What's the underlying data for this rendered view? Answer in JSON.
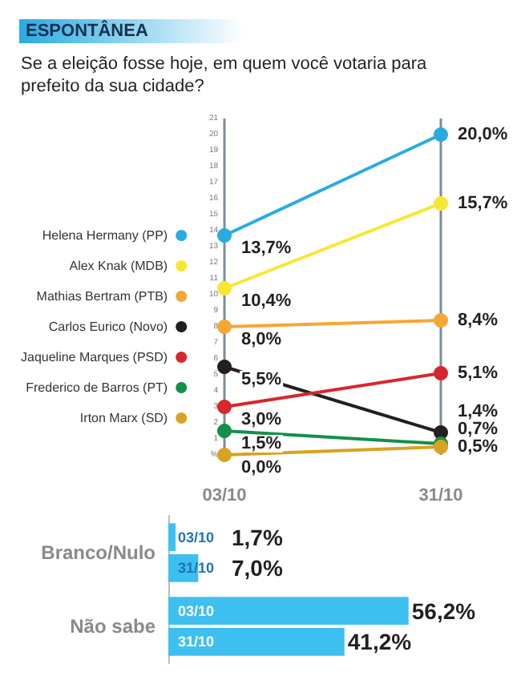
{
  "chart_data": [
    {
      "type": "line",
      "title": "ESPONTÂNEA",
      "subtitle": "Se a eleição fosse hoje, em quem você votaria para prefeito da sua cidade?",
      "categories": [
        "03/10",
        "31/10"
      ],
      "ylim": [
        0,
        21
      ],
      "yticks": [
        {
          "value": 0,
          "label": "%"
        },
        1,
        2,
        3,
        4,
        5,
        6,
        7,
        8,
        9,
        10,
        11,
        12,
        13,
        14,
        15,
        16,
        17,
        18,
        19,
        20,
        21
      ],
      "grid": "x",
      "legend": "left",
      "marker": "circle",
      "series": [
        {
          "name": "Helena Hermany (PP)",
          "color": "#29abe2",
          "values": [
            13.7,
            20.0
          ],
          "value_labels": [
            "13,7%",
            "20,0%"
          ]
        },
        {
          "name": "Alex Knak (MDB)",
          "color": "#f7e733",
          "values": [
            10.4,
            15.7
          ],
          "value_labels": [
            "10,4%",
            "15,7%"
          ]
        },
        {
          "name": "Mathias Bertram (PTB)",
          "color": "#f5a733",
          "values": [
            8.0,
            8.4
          ],
          "value_labels": [
            "8,0%",
            "8,4%"
          ]
        },
        {
          "name": "Carlos Eurico (Novo)",
          "color": "#231f20",
          "values": [
            5.5,
            1.4
          ],
          "value_labels": [
            "5,5%",
            "1,4%"
          ]
        },
        {
          "name": "Jaqueline Marques (PSD)",
          "color": "#d7262d",
          "values": [
            3.0,
            5.1
          ],
          "value_labels": [
            "3,0%",
            "5,1%"
          ]
        },
        {
          "name": "Frederico de Barros (PT)",
          "color": "#13904a",
          "values": [
            1.5,
            0.7
          ],
          "value_labels": [
            "1,5%",
            "0,7%"
          ]
        },
        {
          "name": "Irton Marx (SD)",
          "color": "#d9a21f",
          "values": [
            0.0,
            0.5
          ],
          "value_labels": [
            "0,0%",
            "0,5%"
          ]
        }
      ]
    },
    {
      "type": "bar",
      "orientation": "horizontal",
      "categories": [
        "Branco/Nulo",
        "Não sabe"
      ],
      "tick_labels": "y",
      "series": [
        {
          "name": "03/10",
          "color": "#3dbfef",
          "values": [
            1.7,
            56.2
          ],
          "value_labels": [
            "1,7%",
            "56,2%"
          ]
        },
        {
          "name": "31/10",
          "color": "#3dbfef",
          "values": [
            7.0,
            41.2
          ],
          "value_labels": [
            "7,0%",
            "41,2%"
          ]
        }
      ]
    }
  ]
}
